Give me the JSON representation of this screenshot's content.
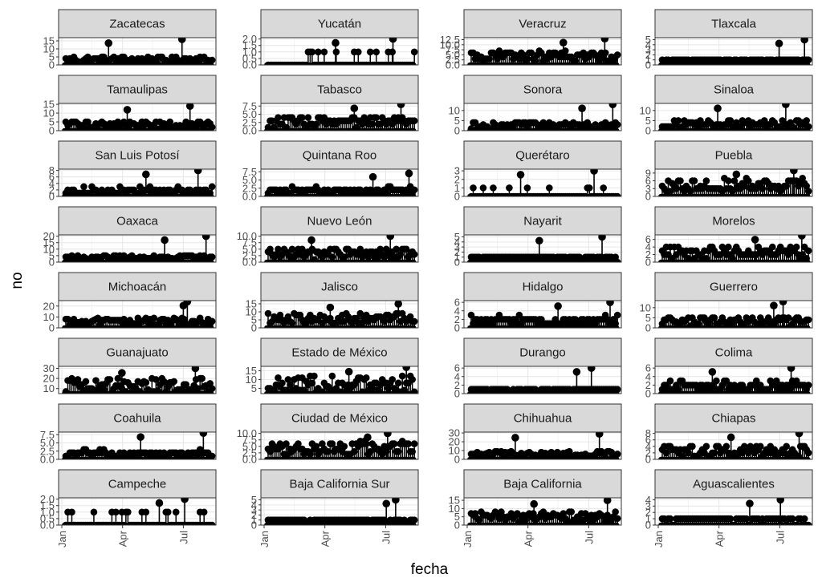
{
  "chart_data": {
    "type": "scatter",
    "style": "faceted lollipop / dot plot, 8 rows x 4 columns, black points with vertical stems",
    "xlabel": "fecha",
    "ylabel": "no",
    "x_ticks": [
      "Jan",
      "Apr",
      "Jul"
    ],
    "x_range": [
      "2020-01-01",
      "2020-08-15"
    ],
    "grid": true,
    "facets": [
      {
        "name": "Zacatecas",
        "yticks": [
          "0",
          "5",
          "10",
          "15"
        ],
        "ylim": [
          0,
          17
        ],
        "peak": 16,
        "typical": 4
      },
      {
        "name": "Yucatán",
        "yticks": [
          "0.0",
          "0.5",
          "1.0",
          "1.5",
          "2.0"
        ],
        "ylim": [
          0,
          2.1
        ],
        "peak": 2,
        "typical": 1
      },
      {
        "name": "Veracruz",
        "yticks": [
          "0.0",
          "2.5",
          "5.0",
          "7.5",
          "10.0",
          "12.5"
        ],
        "ylim": [
          0,
          13.5
        ],
        "peak": 13,
        "typical": 5
      },
      {
        "name": "Tlaxcala",
        "yticks": [
          "0",
          "1",
          "2",
          "3",
          "4",
          "5"
        ],
        "ylim": [
          0,
          5.4
        ],
        "peak": 5,
        "typical": 1
      },
      {
        "name": "Tamaulipas",
        "yticks": [
          "0",
          "5",
          "10",
          "15"
        ],
        "ylim": [
          0,
          15.5
        ],
        "peak": 14,
        "typical": 4
      },
      {
        "name": "Tabasco",
        "yticks": [
          "0.0",
          "2.5",
          "5.0",
          "7.5"
        ],
        "ylim": [
          0,
          8.3
        ],
        "peak": 8,
        "typical": 3
      },
      {
        "name": "Sonora",
        "yticks": [
          "0",
          "5",
          "10"
        ],
        "ylim": [
          0,
          13.5
        ],
        "peak": 13,
        "typical": 3
      },
      {
        "name": "Sinaloa",
        "yticks": [
          "0",
          "5",
          "10"
        ],
        "ylim": [
          0,
          13.5
        ],
        "peak": 13,
        "typical": 4
      },
      {
        "name": "San Luis Potosí",
        "yticks": [
          "0",
          "2",
          "4",
          "6",
          "8"
        ],
        "ylim": [
          0,
          8.4
        ],
        "peak": 8,
        "typical": 2
      },
      {
        "name": "Quintana Roo",
        "yticks": [
          "0.0",
          "2.5",
          "5.0",
          "7.5"
        ],
        "ylim": [
          0,
          8.3
        ],
        "peak": 7,
        "typical": 2
      },
      {
        "name": "Querétaro",
        "yticks": [
          "0",
          "1",
          "2",
          "3"
        ],
        "ylim": [
          0,
          3.2
        ],
        "peak": 3,
        "typical": 1
      },
      {
        "name": "Puebla",
        "yticks": [
          "0",
          "3",
          "6",
          "9"
        ],
        "ylim": [
          0,
          10.5
        ],
        "peak": 10,
        "typical": 5
      },
      {
        "name": "Oaxaca",
        "yticks": [
          "0",
          "5",
          "10",
          "15",
          "20"
        ],
        "ylim": [
          0,
          21
        ],
        "peak": 20,
        "typical": 4
      },
      {
        "name": "Nuevo León",
        "yticks": [
          "0.0",
          "2.5",
          "5.0",
          "7.5",
          "10.0"
        ],
        "ylim": [
          0,
          10.5
        ],
        "peak": 10,
        "typical": 4
      },
      {
        "name": "Nayarit",
        "yticks": [
          "0",
          "1",
          "2",
          "3",
          "4",
          "5"
        ],
        "ylim": [
          0,
          5.4
        ],
        "peak": 5,
        "typical": 1
      },
      {
        "name": "Morelos",
        "yticks": [
          "0",
          "2",
          "4",
          "6"
        ],
        "ylim": [
          0,
          7.2
        ],
        "peak": 7,
        "typical": 3
      },
      {
        "name": "Michoacán",
        "yticks": [
          "0",
          "10",
          "20"
        ],
        "ylim": [
          0,
          25
        ],
        "peak": 24,
        "typical": 7
      },
      {
        "name": "Jalisco",
        "yticks": [
          "0",
          "5",
          "10",
          "15"
        ],
        "ylim": [
          0,
          17
        ],
        "peak": 15,
        "typical": 7
      },
      {
        "name": "Hidalgo",
        "yticks": [
          "0",
          "2",
          "4",
          "6"
        ],
        "ylim": [
          0,
          6.4
        ],
        "peak": 6,
        "typical": 2
      },
      {
        "name": "Guerrero",
        "yticks": [
          "0",
          "5",
          "10"
        ],
        "ylim": [
          0,
          13.5
        ],
        "peak": 13,
        "typical": 4
      },
      {
        "name": "Guanajuato",
        "yticks": [
          "10",
          "20",
          "30"
        ],
        "ylim": [
          5,
          32
        ],
        "peak": 30,
        "typical": 15
      },
      {
        "name": "Estado de México",
        "yticks": [
          "5",
          "10",
          "15"
        ],
        "ylim": [
          2,
          17.5
        ],
        "peak": 17,
        "typical": 9
      },
      {
        "name": "Durango",
        "yticks": [
          "0",
          "2",
          "4",
          "6"
        ],
        "ylim": [
          0,
          6.4
        ],
        "peak": 6,
        "typical": 1
      },
      {
        "name": "Colima",
        "yticks": [
          "0",
          "2",
          "4",
          "6"
        ],
        "ylim": [
          0,
          6.4
        ],
        "peak": 6,
        "typical": 2
      },
      {
        "name": "Coahuila",
        "yticks": [
          "0.0",
          "2.5",
          "5.0",
          "7.5"
        ],
        "ylim": [
          0,
          8.3
        ],
        "peak": 8,
        "typical": 2
      },
      {
        "name": "Ciudad de México",
        "yticks": [
          "0.0",
          "2.5",
          "5.0",
          "7.5",
          "10.0"
        ],
        "ylim": [
          0,
          10.5
        ],
        "peak": 10,
        "typical": 5
      },
      {
        "name": "Chihuahua",
        "yticks": [
          "0",
          "10",
          "20",
          "30"
        ],
        "ylim": [
          0,
          31
        ],
        "peak": 29,
        "typical": 7
      },
      {
        "name": "Chiapas",
        "yticks": [
          "0",
          "2",
          "4",
          "6",
          "8"
        ],
        "ylim": [
          0,
          8.4
        ],
        "peak": 8,
        "typical": 3
      },
      {
        "name": "Campeche",
        "yticks": [
          "0.0",
          "0.5",
          "1.0",
          "1.5",
          "2.0"
        ],
        "ylim": [
          0,
          2.1
        ],
        "peak": 2,
        "typical": 1
      },
      {
        "name": "Baja California Sur",
        "yticks": [
          "0",
          "1",
          "2",
          "3",
          "4",
          "5"
        ],
        "ylim": [
          0,
          5.4
        ],
        "peak": 5,
        "typical": 1
      },
      {
        "name": "Baja California",
        "yticks": [
          "0",
          "5",
          "10",
          "15"
        ],
        "ylim": [
          0,
          16.5
        ],
        "peak": 15,
        "typical": 6
      },
      {
        "name": "Aguascalientes",
        "yticks": [
          "0",
          "1",
          "2",
          "3",
          "4"
        ],
        "ylim": [
          0,
          4.3
        ],
        "peak": 4,
        "typical": 1
      }
    ]
  },
  "colors": {
    "background": "#ffffff",
    "strip_fill": "#d9d9d9",
    "strip_border": "#333333",
    "panel_border": "#333333",
    "grid_major": "#e6e6e6",
    "grid_minor": "#f3f3f3",
    "points": "#000000",
    "tick_text": "#4d4d4d"
  }
}
